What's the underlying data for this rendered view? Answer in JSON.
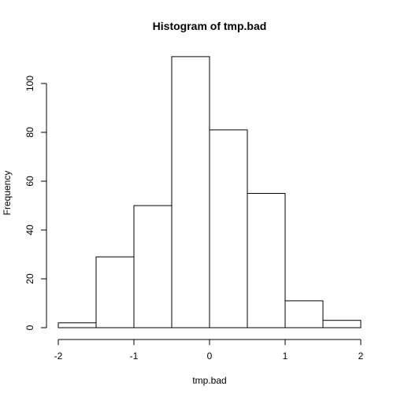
{
  "chart_data": {
    "type": "bar",
    "subtype": "histogram",
    "title": "Histogram of tmp.bad",
    "xlabel": "tmp.bad",
    "ylabel": "Frequency",
    "bin_edges": [
      -2,
      -1.5,
      -1,
      -0.5,
      0,
      0.5,
      1,
      1.5,
      2
    ],
    "values": [
      2,
      29,
      50,
      111,
      81,
      55,
      11,
      3
    ],
    "xlim": [
      -2,
      2
    ],
    "ylim": [
      0,
      111
    ],
    "x_ticks": [
      -2,
      -1,
      0,
      1,
      2
    ],
    "x_tick_labels": [
      "-2",
      "-1",
      "0",
      "1",
      "2"
    ],
    "y_ticks": [
      0,
      20,
      40,
      60,
      80,
      100
    ],
    "y_tick_labels": [
      "0",
      "20",
      "40",
      "60",
      "80",
      "100"
    ],
    "grid": false,
    "colors": {
      "bar_fill": "#ffffff",
      "bar_stroke": "#000000"
    }
  }
}
